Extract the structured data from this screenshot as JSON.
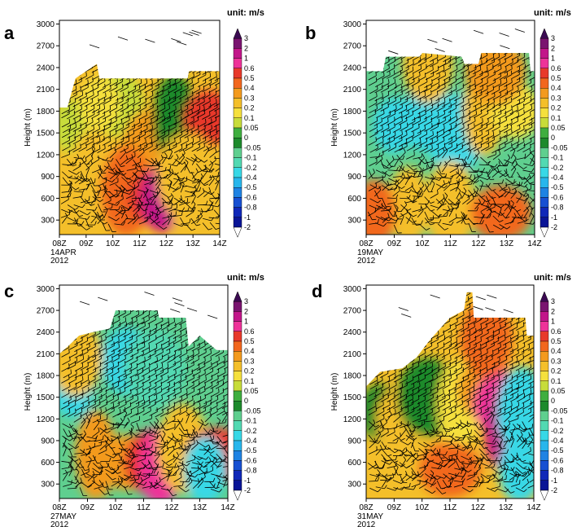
{
  "chart_data": [
    {
      "panel": "a",
      "type": "heatmap",
      "xlabel": "",
      "ylabel": "Height (m)",
      "date_lines": [
        "14APR",
        "2012"
      ],
      "x_ticks": [
        "08Z",
        "09Z",
        "10Z",
        "11Z",
        "12Z",
        "13Z",
        "14Z"
      ],
      "y_ticks": [
        300,
        600,
        900,
        1200,
        1500,
        1800,
        2100,
        2400,
        2700,
        3000
      ],
      "xlim": [
        8,
        14
      ],
      "ylim": [
        100,
        3050
      ],
      "colorbar_title": "unit: m/s",
      "top_by_hour": [
        [
          8,
          1850
        ],
        [
          8.3,
          1850
        ],
        [
          8.6,
          2250
        ],
        [
          9.4,
          2450
        ],
        [
          9.5,
          2250
        ],
        [
          12.8,
          2250
        ],
        [
          12.85,
          2350
        ],
        [
          14,
          2350
        ]
      ],
      "cells": [
        [
          8.5,
          1600,
          0.05
        ],
        [
          10.2,
          1900,
          0.05
        ],
        [
          11.5,
          1300,
          0.3
        ],
        [
          12.3,
          1700,
          -0.05
        ],
        [
          13.6,
          1700,
          0.5
        ],
        [
          8.4,
          500,
          0.2
        ],
        [
          9.2,
          1000,
          0.2
        ],
        [
          10.5,
          700,
          0.4
        ],
        [
          11.7,
          600,
          0.5
        ],
        [
          11.85,
          600,
          1.0
        ],
        [
          13.2,
          400,
          0.2
        ],
        [
          12.8,
          900,
          0.2
        ],
        [
          9.5,
          1900,
          0.1
        ]
      ],
      "wind_barbs": true
    },
    {
      "panel": "b",
      "type": "heatmap",
      "xlabel": "",
      "ylabel": "Height (m)",
      "date_lines": [
        "19MAY",
        "2012"
      ],
      "x_ticks": [
        "08Z",
        "09Z",
        "10Z",
        "11Z",
        "12Z",
        "13Z",
        "14Z"
      ],
      "y_ticks": [
        300,
        600,
        900,
        1200,
        1500,
        1800,
        2100,
        2400,
        2700,
        3000
      ],
      "xlim": [
        8,
        14
      ],
      "ylim": [
        100,
        3050
      ],
      "colorbar_title": "unit: m/s",
      "top_by_hour": [
        [
          8,
          2350
        ],
        [
          8.6,
          2350
        ],
        [
          8.7,
          2550
        ],
        [
          9.9,
          2550
        ],
        [
          10,
          2600
        ],
        [
          11.4,
          2550
        ],
        [
          11.5,
          2450
        ],
        [
          12,
          2450
        ],
        [
          12.1,
          2600
        ],
        [
          13.8,
          2600
        ],
        [
          13.85,
          2350
        ],
        [
          14,
          2350
        ]
      ],
      "cells": [
        [
          9.0,
          1600,
          -0.4
        ],
        [
          10.2,
          1700,
          -0.3
        ],
        [
          11.2,
          1500,
          -0.4
        ],
        [
          12.2,
          1800,
          0.2
        ],
        [
          13.3,
          1800,
          0.1
        ],
        [
          12.6,
          2350,
          0.3
        ],
        [
          9.5,
          500,
          0.2
        ],
        [
          11.0,
          500,
          0.2
        ],
        [
          12.8,
          400,
          0.4
        ],
        [
          8.3,
          400,
          0.4
        ],
        [
          10.2,
          2450,
          0.2
        ]
      ],
      "wind_barbs": true
    },
    {
      "panel": "c",
      "type": "heatmap",
      "xlabel": "",
      "ylabel": "Height (m)",
      "date_lines": [
        "27MAY",
        "2012"
      ],
      "x_ticks": [
        "08Z",
        "09Z",
        "10Z",
        "11Z",
        "12Z",
        "13Z",
        "14Z"
      ],
      "y_ticks": [
        300,
        600,
        900,
        1200,
        1500,
        1800,
        2100,
        2400,
        2700,
        3000
      ],
      "xlim": [
        8,
        14
      ],
      "ylim": [
        100,
        3050
      ],
      "colorbar_title": "unit: m/s",
      "top_by_hour": [
        [
          8,
          2100
        ],
        [
          8.3,
          2200
        ],
        [
          8.7,
          2350
        ],
        [
          9.2,
          2400
        ],
        [
          9.8,
          2450
        ],
        [
          10,
          2700
        ],
        [
          11.5,
          2700
        ],
        [
          11.55,
          2600
        ],
        [
          12.5,
          2600
        ],
        [
          12.6,
          2200
        ],
        [
          13,
          2350
        ],
        [
          13.6,
          2150
        ],
        [
          14,
          2150
        ]
      ],
      "cells": [
        [
          8.5,
          1600,
          -0.4
        ],
        [
          10.4,
          2000,
          -0.3
        ],
        [
          11.4,
          1900,
          -0.2
        ],
        [
          9.3,
          700,
          0.3
        ],
        [
          10.4,
          600,
          0.3
        ],
        [
          11.4,
          600,
          0.5
        ],
        [
          11.6,
          550,
          0.6
        ],
        [
          12.4,
          800,
          0.2
        ],
        [
          13.6,
          700,
          0.5
        ],
        [
          13.2,
          500,
          -0.4
        ],
        [
          8.6,
          2050,
          0.2
        ]
      ],
      "wind_barbs": true
    },
    {
      "panel": "d",
      "type": "heatmap",
      "xlabel": "",
      "ylabel": "Height (m)",
      "date_lines": [
        "31MAY",
        "2012"
      ],
      "x_ticks": [
        "08Z",
        "09Z",
        "10Z",
        "11Z",
        "12Z",
        "13Z",
        "14Z"
      ],
      "y_ticks": [
        300,
        600,
        900,
        1200,
        1500,
        1800,
        2100,
        2400,
        2700,
        3000
      ],
      "xlim": [
        8,
        14
      ],
      "ylim": [
        100,
        3050
      ],
      "colorbar_title": "unit: m/s",
      "top_by_hour": [
        [
          8,
          1650
        ],
        [
          8.5,
          1850
        ],
        [
          9.3,
          1900
        ],
        [
          9.8,
          2050
        ],
        [
          10.3,
          2300
        ],
        [
          11,
          2600
        ],
        [
          11.5,
          2700
        ],
        [
          11.6,
          2950
        ],
        [
          11.8,
          2950
        ],
        [
          11.85,
          2600
        ],
        [
          13.7,
          2600
        ],
        [
          13.75,
          2350
        ],
        [
          14,
          2350
        ]
      ],
      "cells": [
        [
          8.5,
          1300,
          -0.05
        ],
        [
          9.3,
          1200,
          0.2
        ],
        [
          10.2,
          1500,
          -0.05
        ],
        [
          11.3,
          1400,
          0.1
        ],
        [
          12.2,
          1600,
          0.3
        ],
        [
          12.95,
          1400,
          0.6
        ],
        [
          13.0,
          1000,
          1.0
        ],
        [
          13.6,
          1300,
          -0.3
        ],
        [
          11.0,
          500,
          0.4
        ],
        [
          13.5,
          500,
          -0.4
        ],
        [
          12.3,
          2300,
          0.4
        ]
      ],
      "wind_barbs": true
    }
  ],
  "colorbar": {
    "levels": [
      "3",
      "2",
      "1",
      "0.6",
      "0.5",
      "0.4",
      "0.3",
      "0.2",
      "0.1",
      "0.05",
      "0",
      "-0.05",
      "-0.1",
      "-0.2",
      "-0.4",
      "-0.5",
      "-0.6",
      "-0.8",
      "-1",
      "-2"
    ],
    "colors": [
      "#3b0a52",
      "#7a1470",
      "#c2168a",
      "#ee3399",
      "#e8392b",
      "#f2671e",
      "#f39a1e",
      "#f4bf2a",
      "#f5e03d",
      "#c7dc3a",
      "#3fae3f",
      "#1d8a2c",
      "#5fcf8f",
      "#52d9b2",
      "#38d8e6",
      "#28b6ec",
      "#1f83e3",
      "#1750d2",
      "#1028b8",
      "#0a1596",
      "#ffffff"
    ]
  }
}
